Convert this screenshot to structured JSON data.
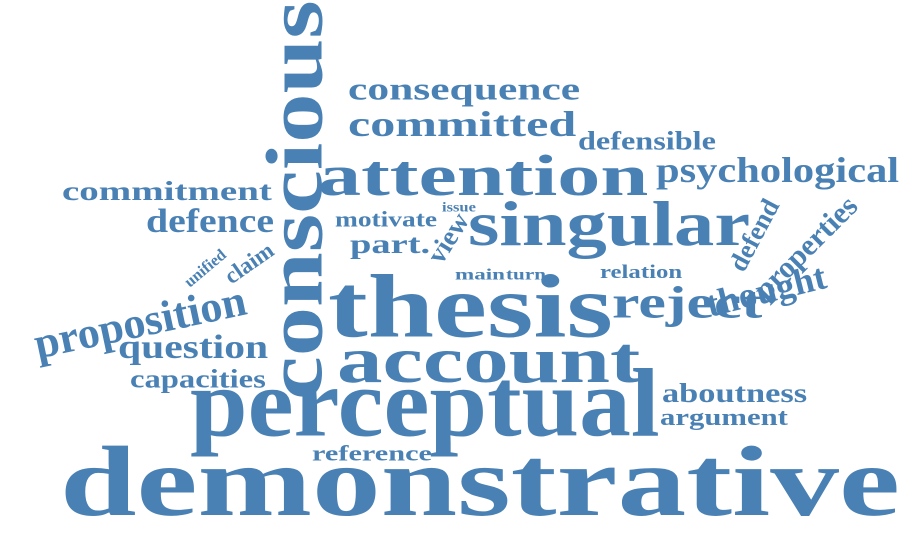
{
  "color": "#4a81b4",
  "words": [
    {
      "key": "demonstrative",
      "text": "demonstrative",
      "weight": 100
    },
    {
      "key": "perceptual",
      "text": "perceptual",
      "weight": 58
    },
    {
      "key": "thesis",
      "text": "thesis",
      "weight": 65
    },
    {
      "key": "conscious",
      "text": "conscious",
      "weight": 48
    },
    {
      "key": "account",
      "text": "account",
      "weight": 44
    },
    {
      "key": "attention",
      "text": "attention",
      "weight": 40
    },
    {
      "key": "singular",
      "text": "singular",
      "weight": 38
    },
    {
      "key": "thought",
      "text": "thought",
      "weight": 36
    },
    {
      "key": "consequence",
      "text": "consequence",
      "weight": 18
    },
    {
      "key": "committed",
      "text": "committed",
      "weight": 20
    },
    {
      "key": "defensible",
      "text": "defensible",
      "weight": 14
    },
    {
      "key": "psychological",
      "text": "psychological",
      "weight": 19
    },
    {
      "key": "commitment",
      "text": "commitment",
      "weight": 15
    },
    {
      "key": "defence",
      "text": "defence",
      "weight": 15
    },
    {
      "key": "motivate",
      "text": "motivate",
      "weight": 11
    },
    {
      "key": "issue",
      "text": "issue",
      "weight": 6
    },
    {
      "key": "view",
      "text": "view",
      "weight": 16
    },
    {
      "key": "part",
      "text": "part.",
      "weight": 13
    },
    {
      "key": "unified",
      "text": "unified",
      "weight": 7
    },
    {
      "key": "claim",
      "text": "claim",
      "weight": 11
    },
    {
      "key": "main",
      "text": "main",
      "weight": 8
    },
    {
      "key": "turn",
      "text": "turn",
      "weight": 8
    },
    {
      "key": "relation",
      "text": "relation",
      "weight": 9
    },
    {
      "key": "defend",
      "text": "defend",
      "weight": 12
    },
    {
      "key": "properties",
      "text": "properties",
      "weight": 14
    },
    {
      "key": "reject",
      "text": "reject",
      "weight": 22
    },
    {
      "key": "proposition",
      "text": "proposition",
      "weight": 25
    },
    {
      "key": "question",
      "text": "question",
      "weight": 19
    },
    {
      "key": "capacities",
      "text": "capacities",
      "weight": 14
    },
    {
      "key": "aboutness",
      "text": "aboutness",
      "weight": 14
    },
    {
      "key": "argument",
      "text": "argument",
      "weight": 14
    },
    {
      "key": "reference",
      "text": "reference",
      "weight": 13
    }
  ]
}
